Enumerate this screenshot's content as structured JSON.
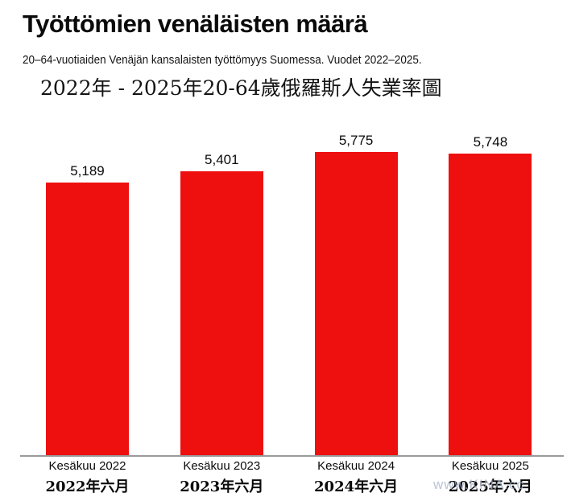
{
  "header": {
    "title": "Työttömien venäläisten määrä",
    "subtitle": "20–64-vuotiaiden Venäjän kansalaisten työttömyys Suomessa. Vuodet 2022–2025.",
    "subtitle_zh": "2022年 - 2025年20-64歲俄羅斯人失業率圖"
  },
  "chart_data": {
    "type": "bar",
    "title": "Työttömien venäläisten määrä",
    "categories": [
      "Kesäkuu 2022",
      "Kesäkuu 2023",
      "Kesäkuu 2024",
      "Kesäkuu 2025"
    ],
    "categories_zh": [
      "2022年六月",
      "2023年六月",
      "2024年六月",
      "2025年六月"
    ],
    "values": [
      5189,
      5401,
      5775,
      5748
    ],
    "value_labels": [
      "5,189",
      "5,401",
      "5,775",
      "5,748"
    ],
    "xlabel": "",
    "ylabel": "",
    "ylim": [
      0,
      5775
    ],
    "grid": false,
    "legend": false,
    "bar_color": "#ee0f0f",
    "axis_color": "#9a9a9a"
  },
  "watermark": {
    "text": "www.KINA.cc",
    "color": "#a4b0c6"
  }
}
